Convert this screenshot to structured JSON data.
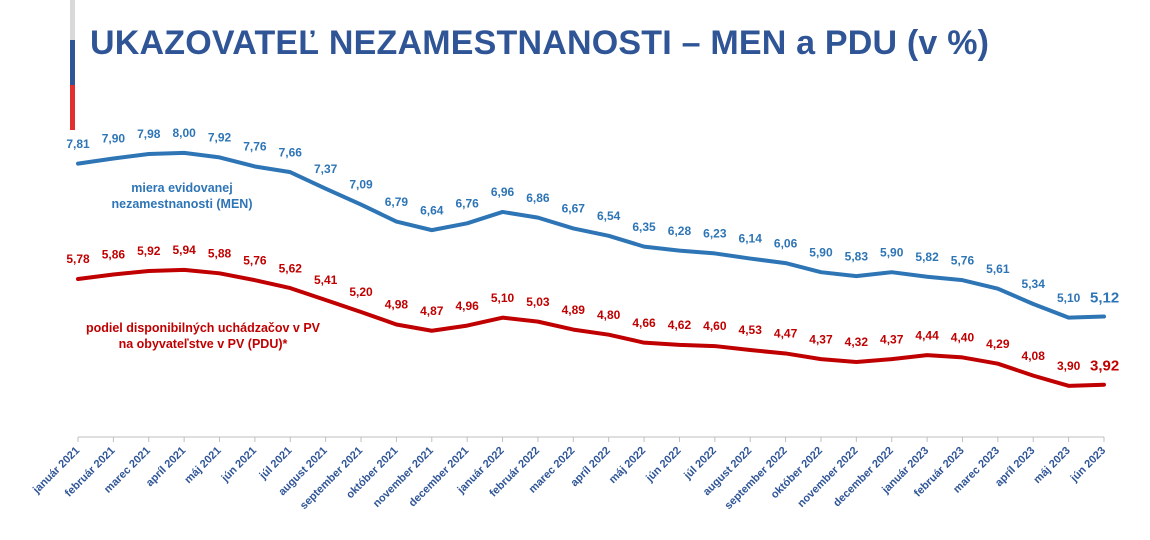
{
  "chart_data": {
    "type": "line",
    "title": "UKAZOVATEĽ NEZAMESTNANOSTI – MEN a PDU (v %)",
    "categories": [
      "január 2021",
      "február 2021",
      "marec 2021",
      "apríl 2021",
      "máj 2021",
      "jún 2021",
      "júl 2021",
      "august 2021",
      "september 2021",
      "október 2021",
      "november 2021",
      "december 2021",
      "január 2022",
      "február 2022",
      "marec 2022",
      "apríl 2022",
      "máj 2022",
      "jún 2022",
      "júl 2022",
      "august 2022",
      "september 2022",
      "október 2022",
      "november 2022",
      "december 2022",
      "január 2023",
      "február 2023",
      "marec 2023",
      "apríl 2023",
      "máj 2023",
      "jún 2023"
    ],
    "series": [
      {
        "name": "miera evidovanej nezamestnanosti (MEN)",
        "color": "#2e75b6",
        "values": [
          7.81,
          7.9,
          7.98,
          8.0,
          7.92,
          7.76,
          7.66,
          7.37,
          7.09,
          6.79,
          6.64,
          6.76,
          6.96,
          6.86,
          6.67,
          6.54,
          6.35,
          6.28,
          6.23,
          6.14,
          6.06,
          5.9,
          5.83,
          5.9,
          5.82,
          5.76,
          5.61,
          5.34,
          5.1,
          5.12
        ],
        "value_labels": [
          "7,81",
          "7,90",
          "7,98",
          "8,00",
          "7,92",
          "7,76",
          "7,66",
          "7,37",
          "7,09",
          "6,79",
          "6,64",
          "6,76",
          "6,96",
          "6,86",
          "6,67",
          "6,54",
          "6,35",
          "6,28",
          "6,23",
          "6,14",
          "6,06",
          "5,90",
          "5,83",
          "5,90",
          "5,82",
          "5,76",
          "5,61",
          "5,34",
          "5,10",
          "5,12"
        ]
      },
      {
        "name": "podiel disponibilných uchádzačov v PV na obyvateľstve v PV (PDU)*",
        "color": "#c00000",
        "values": [
          5.78,
          5.86,
          5.92,
          5.94,
          5.88,
          5.76,
          5.62,
          5.41,
          5.2,
          4.98,
          4.87,
          4.96,
          5.1,
          5.03,
          4.89,
          4.8,
          4.66,
          4.62,
          4.6,
          4.53,
          4.47,
          4.37,
          4.32,
          4.37,
          4.44,
          4.4,
          4.29,
          4.08,
          3.9,
          3.92
        ],
        "value_labels": [
          "5,78",
          "5,86",
          "5,92",
          "5,94",
          "5,88",
          "5,76",
          "5,62",
          "5,41",
          "5,20",
          "4,98",
          "4,87",
          "4,96",
          "5,10",
          "5,03",
          "4,89",
          "4,80",
          "4,66",
          "4,62",
          "4,60",
          "4,53",
          "4,47",
          "4,37",
          "4,32",
          "4,37",
          "4,44",
          "4,40",
          "4,29",
          "4,08",
          "3,90",
          "3,92"
        ]
      }
    ],
    "ylim": [
      3,
      9
    ]
  }
}
